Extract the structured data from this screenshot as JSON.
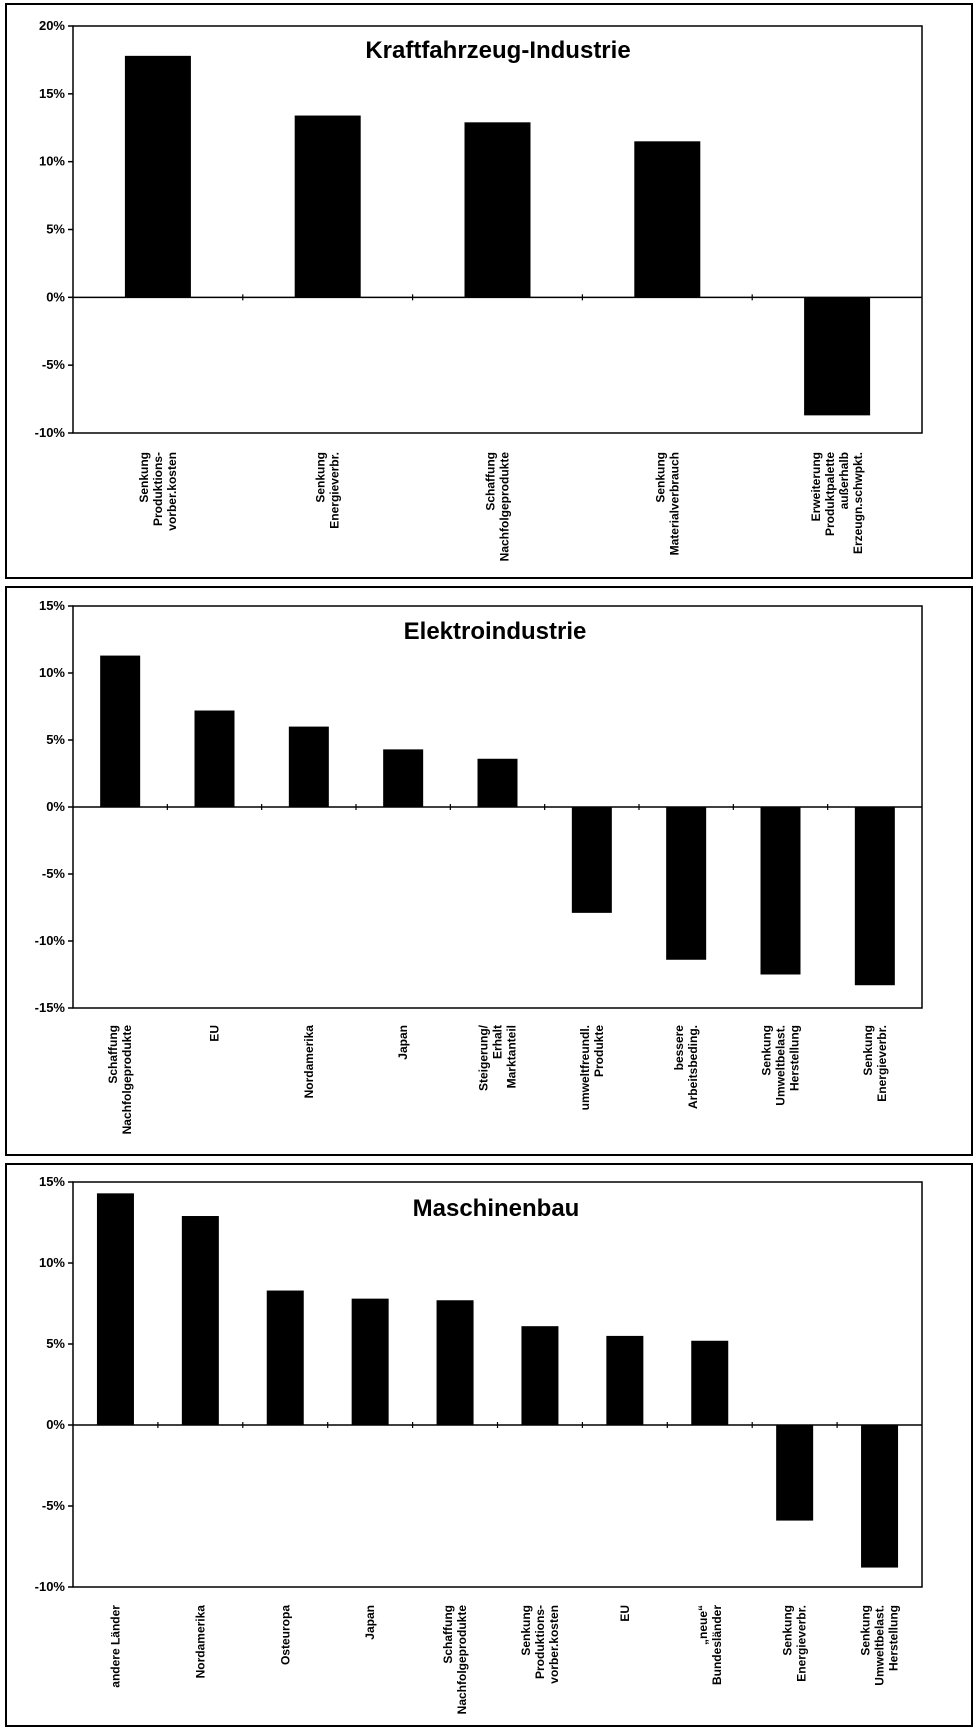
{
  "chart_data": [
    {
      "type": "bar",
      "title": "Kraftfahrzeug-Industrie",
      "ylim": [
        -10,
        20
      ],
      "yticks": [
        "20%",
        "15%",
        "10%",
        "5%",
        "0%",
        "-5%",
        "-10%"
      ],
      "categories": [
        [
          "Senkung",
          "Produktions-",
          "vorber.kosten"
        ],
        [
          "Senkung",
          "Energieverbr."
        ],
        [
          "Schaffung",
          "Nachfolgeprodukte"
        ],
        [
          "Senkung",
          "Materialverbrauch"
        ],
        [
          "Erweiterung",
          "Produktpalette",
          "außerhalb",
          "Erzeugn.schwpkt."
        ]
      ],
      "values": [
        17.8,
        13.4,
        12.9,
        11.5,
        -8.7
      ],
      "bar_color": "#000000"
    },
    {
      "type": "bar",
      "title": "Elektroindustrie",
      "ylim": [
        -15,
        15
      ],
      "yticks": [
        "15%",
        "10%",
        "5%",
        "0%",
        "-5%",
        "-10%",
        "-15%"
      ],
      "categories": [
        [
          "Schaffung",
          "Nachfolgeprodukte"
        ],
        [
          "EU"
        ],
        [
          "Nordamerika"
        ],
        [
          "Japan"
        ],
        [
          "Steigerung/",
          "Erhalt",
          "Marktanteil"
        ],
        [
          "umweltfreundl.",
          "Produkte"
        ],
        [
          "bessere",
          "Arbeitsbeding."
        ],
        [
          "Senkung",
          "Umweltbelast.",
          "Herstellung"
        ],
        [
          "Senkung",
          "Energieverbr."
        ]
      ],
      "values": [
        11.3,
        7.2,
        6.0,
        4.3,
        3.6,
        -7.9,
        -11.4,
        -12.5,
        -13.3
      ],
      "bar_color": "#000000"
    },
    {
      "type": "bar",
      "title": "Maschinenbau",
      "ylim": [
        -10,
        15
      ],
      "yticks": [
        "15%",
        "10%",
        "5%",
        "0%",
        "-5%",
        "-10%"
      ],
      "categories": [
        [
          "andere Länder"
        ],
        [
          "Nordamerika"
        ],
        [
          "Osteuropa"
        ],
        [
          "Japan"
        ],
        [
          "Schaffung",
          "Nachfolgeprodukte"
        ],
        [
          "Senkung",
          "Produktions-",
          "vorber.kosten"
        ],
        [
          "EU"
        ],
        [
          "„neue“",
          "Bundesländer"
        ],
        [
          "Senkung",
          "Energieverbr."
        ],
        [
          "Senkung",
          "Umweltbelast.",
          "Herstellung"
        ]
      ],
      "values": [
        14.3,
        12.9,
        8.3,
        7.8,
        7.7,
        6.1,
        5.5,
        5.2,
        -5.9,
        -8.8
      ],
      "bar_color": "#000000"
    }
  ]
}
